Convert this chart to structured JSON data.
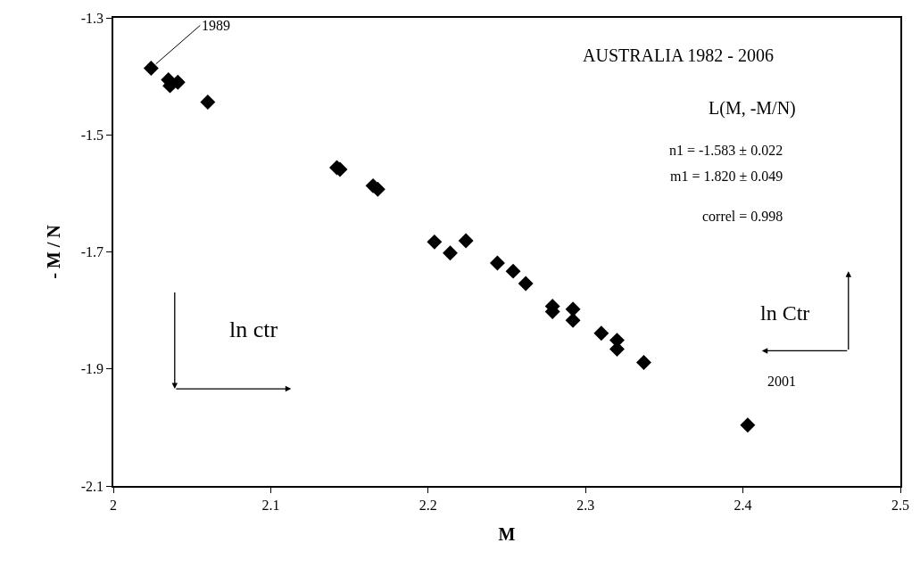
{
  "chart_data": {
    "type": "scatter",
    "title": "AUSTRALIA 1982 - 2006",
    "subtitle": "L(M, -M/N)",
    "xlabel": "M",
    "ylabel": "- M / N",
    "x": [
      2.024,
      2.035,
      2.036,
      2.041,
      2.06,
      2.142,
      2.144,
      2.165,
      2.168,
      2.204,
      2.214,
      2.224,
      2.244,
      2.254,
      2.262,
      2.279,
      2.279,
      2.292,
      2.292,
      2.31,
      2.32,
      2.32,
      2.337,
      2.403
    ],
    "series": [
      {
        "color": "#000000",
        "values": [
          -1.386,
          -1.406,
          -1.416,
          -1.41,
          -1.444,
          -1.556,
          -1.559,
          -1.587,
          -1.593,
          -1.683,
          -1.702,
          -1.681,
          -1.719,
          -1.733,
          -1.754,
          -1.793,
          -1.802,
          -1.798,
          -1.817,
          -1.839,
          -1.851,
          -1.866,
          -1.889,
          -1.996
        ]
      }
    ],
    "marker": "diamond",
    "xlim": [
      2,
      2.5
    ],
    "xticks": [
      2,
      2.1,
      2.2,
      2.3,
      2.4,
      2.5
    ],
    "ylim": [
      -2.1,
      -1.3
    ],
    "yticks": [
      -2.1,
      -1.9,
      -1.7,
      -1.5,
      -1.3
    ],
    "annotations": [
      "n1 = -1.583 ± 0.022",
      "m1 = 1.820 ± 0.049",
      "correl = 0.998",
      "ln ctr",
      "ln Ctr",
      {
        "text": "1989",
        "x": 2.024,
        "y": -1.386
      },
      "2001"
    ]
  }
}
